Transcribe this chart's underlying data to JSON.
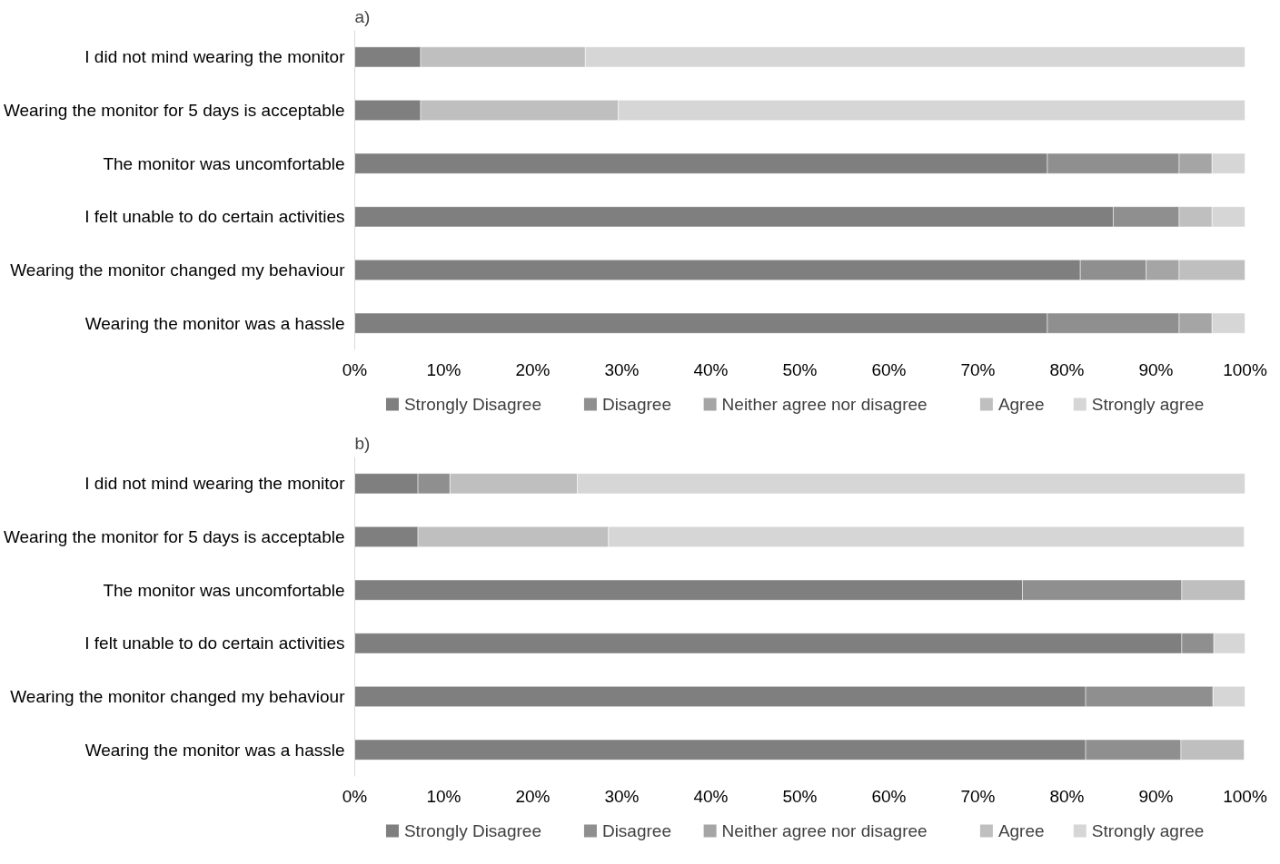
{
  "chart_data": [
    {
      "type": "bar",
      "title": "a)",
      "orientation": "horizontal",
      "stacked": true,
      "categories": [
        "I did not mind wearing the monitor",
        "Wearing the monitor for 5 days is acceptable",
        "The monitor was uncomfortable",
        "I felt unable to do certain activities",
        "Wearing the monitor changed my behaviour",
        "Wearing the monitor was a hassle"
      ],
      "series": [
        {
          "name": "Strongly Disagree",
          "color": "#7f7f7f",
          "values": [
            7.4,
            7.4,
            77.8,
            85.2,
            81.5,
            77.8
          ]
        },
        {
          "name": "Disagree",
          "color": "#8f8f8f",
          "values": [
            null,
            null,
            14.8,
            7.4,
            7.4,
            14.8
          ]
        },
        {
          "name": "Neither agree nor disagree",
          "color": "#a5a5a5",
          "values": [
            null,
            null,
            3.7,
            null,
            3.7,
            3.7
          ]
        },
        {
          "name": "Agree",
          "color": "#bfbfbf",
          "values": [
            18.5,
            22.2,
            null,
            3.7,
            7.4,
            null
          ]
        },
        {
          "name": "Strongly agree",
          "color": "#d6d6d6",
          "values": [
            74.1,
            70.4,
            3.7,
            3.7,
            null,
            3.7
          ]
        }
      ],
      "xlim": [
        0,
        100
      ],
      "xticks": [
        {
          "value": 0,
          "label": "0%"
        },
        {
          "value": 10,
          "label": "10%"
        },
        {
          "value": 20,
          "label": "20%"
        },
        {
          "value": 30,
          "label": "30%"
        },
        {
          "value": 40,
          "label": "40%"
        },
        {
          "value": 50,
          "label": "50%"
        },
        {
          "value": 60,
          "label": "60%"
        },
        {
          "value": 70,
          "label": "70%"
        },
        {
          "value": 80,
          "label": "80%"
        },
        {
          "value": 90,
          "label": "90%"
        },
        {
          "value": 100,
          "label": "100%"
        }
      ],
      "grid": false,
      "legend": "bottom"
    },
    {
      "type": "bar",
      "title": "b)",
      "orientation": "horizontal",
      "stacked": true,
      "categories": [
        "I did not mind wearing the monitor",
        "Wearing the monitor for 5 days is acceptable",
        "The monitor was uncomfortable",
        "I felt unable to do certain activities",
        "Wearing the monitor changed my behaviour",
        "Wearing the monitor was a hassle"
      ],
      "series": [
        {
          "name": "Strongly Disagree",
          "color": "#7f7f7f",
          "values": [
            7.1,
            7.1,
            75.0,
            92.9,
            82.1,
            82.1
          ]
        },
        {
          "name": "Disagree",
          "color": "#8f8f8f",
          "values": [
            3.6,
            null,
            17.9,
            3.6,
            14.3,
            10.7
          ]
        },
        {
          "name": "Neither agree nor disagree",
          "color": "#a5a5a5",
          "values": [
            null,
            null,
            null,
            null,
            null,
            null
          ]
        },
        {
          "name": "Agree",
          "color": "#bfbfbf",
          "values": [
            14.3,
            21.4,
            7.1,
            null,
            null,
            7.1
          ]
        },
        {
          "name": "Strongly agree",
          "color": "#d6d6d6",
          "values": [
            75.0,
            71.4,
            null,
            3.6,
            3.6,
            null
          ]
        }
      ],
      "xlim": [
        0,
        100
      ],
      "xticks": [
        {
          "value": 0,
          "label": "0%"
        },
        {
          "value": 10,
          "label": "10%"
        },
        {
          "value": 20,
          "label": "20%"
        },
        {
          "value": 30,
          "label": "30%"
        },
        {
          "value": 40,
          "label": "40%"
        },
        {
          "value": 50,
          "label": "50%"
        },
        {
          "value": 60,
          "label": "60%"
        },
        {
          "value": 70,
          "label": "70%"
        },
        {
          "value": 80,
          "label": "80%"
        },
        {
          "value": 90,
          "label": "90%"
        },
        {
          "value": 100,
          "label": "100%"
        }
      ],
      "grid": false,
      "legend": "bottom"
    }
  ]
}
